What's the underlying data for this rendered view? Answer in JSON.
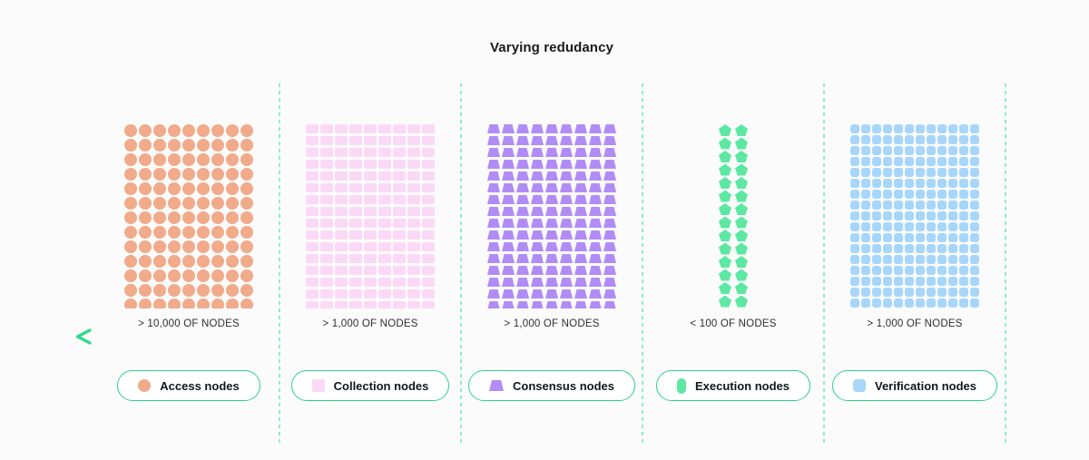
{
  "title": "Varying redudancy",
  "colors": {
    "background": "#FBFBFB",
    "title": "#1A1A1A",
    "count_label": "#2E2E2E",
    "pill_border": "#2BD389",
    "pill_bg": "#FFFFFF",
    "pill_text": "#11181C",
    "separator": "#8BEFC8",
    "arrow_start": "#2FDB8F",
    "arrow_end": "#12855A"
  },
  "sections": [
    {
      "count_label": "> 10,000 OF NODES",
      "legend_label": "Access nodes",
      "shape": "circle",
      "color": "#F1AA8A",
      "cols": 9,
      "rows": 13
    },
    {
      "count_label": "> 1,000 OF NODES",
      "legend_label": "Collection nodes",
      "shape": "rect",
      "color": "#FBD9F6",
      "cols": 9,
      "rows": 16
    },
    {
      "count_label": "> 1,000 OF NODES",
      "legend_label": "Consensus nodes",
      "shape": "trapezoid",
      "color": "#B18CF6",
      "cols": 9,
      "rows": 16
    },
    {
      "count_label": "< 100 OF NODES",
      "legend_label": "Execution nodes",
      "shape": "pentagon",
      "color": "#5CE8A2",
      "cols": 2,
      "rows": 14
    },
    {
      "count_label": "> 1,000 OF NODES",
      "legend_label": "Verification nodes",
      "shape": "rounded-square",
      "color": "#A7D6FA",
      "cols": 12,
      "rows": 17
    }
  ]
}
